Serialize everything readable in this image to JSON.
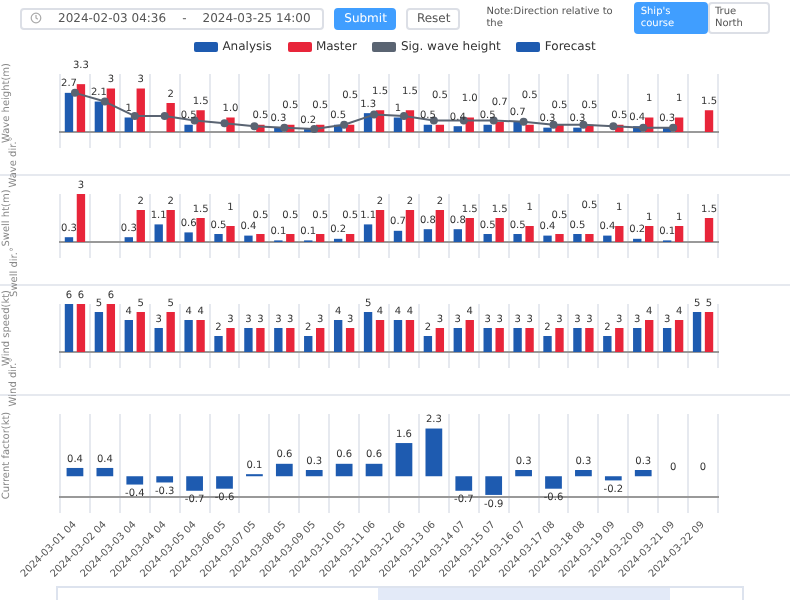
{
  "chart_data": [
    {
      "type": "other",
      "annotations": [
        "2024-02-03 04:36",
        "-",
        "2024-03-25 14:00",
        "Submit",
        "Reset",
        "Note:Direction relative to the",
        "Ship's course",
        "True North"
      ]
    },
    {
      "type": "bar",
      "ylabel": "Wave height(m)",
      "categories": [
        "2024-03-01 04",
        "2024-03-02 04",
        "2024-03-03 04",
        "2024-03-04 04",
        "2024-03-05 04",
        "2024-03-06 05",
        "2024-03-07 05",
        "2024-03-08 05",
        "2024-03-09 05",
        "2024-03-10 05",
        "2024-03-11 06",
        "2024-03-12 06",
        "2024-03-13 06",
        "2024-03-14 07",
        "2024-03-15 07",
        "2024-03-16 07",
        "2024-03-17 08",
        "2024-03-18 08",
        "2024-03-19 09",
        "2024-03-20 09",
        "2024-03-21 09",
        "2024-03-22 09"
      ],
      "series": [
        {
          "name": "Analysis",
          "color": "#1e5bb0",
          "values": [
            2.7,
            2.1,
            1,
            null,
            0.5,
            null,
            null,
            0.3,
            0.2,
            0.5,
            1.3,
            1,
            0.5,
            0.4,
            0.5,
            0.7,
            0.3,
            0.3,
            null,
            0.4,
            0.3,
            null
          ],
          "value_labels": [
            "2.7",
            "2.1",
            "1",
            null,
            "0.5",
            null,
            null,
            "0.3",
            "0.2",
            "0.5",
            "1.3",
            "1",
            "0.5",
            "0.4",
            "0.5",
            "0.7",
            "0.3",
            "0.3",
            null,
            "0.4",
            "0.3",
            null
          ]
        },
        {
          "name": "Master",
          "color": "#e8253a",
          "values": [
            3.3,
            3,
            3,
            2,
            1.5,
            1.0,
            0.5,
            0.5,
            0.5,
            0.5,
            1.5,
            1.5,
            0.5,
            1.0,
            0.7,
            0.5,
            0.5,
            0.5,
            0.5,
            1,
            1,
            1.5
          ],
          "value_labels": [
            "3.3",
            "3",
            "3",
            "2",
            "1.5",
            "1.0",
            "0.5",
            "0.5",
            "0.5",
            "0.5",
            "1.5",
            "1.5",
            "0.5",
            "1.0",
            "0.7",
            "0.5",
            "0.5",
            "0.5",
            "0.5",
            "1",
            "1",
            "1.5"
          ]
        },
        {
          "name": "Sig. wave height",
          "type": "line",
          "color": "#5a6472",
          "values": [
            2.7,
            2.1,
            1.1,
            1.1,
            0.8,
            0.6,
            0.4,
            0.3,
            0.2,
            0.5,
            1.2,
            1.1,
            0.8,
            0.8,
            0.8,
            0.7,
            0.5,
            0.5,
            0.4,
            0.3,
            0.3,
            null
          ]
        }
      ],
      "marker": "circle",
      "grid": "x",
      "legend": "top",
      "tick_labels": false
    },
    {
      "type": "other",
      "ylabel": "Wave dir.°"
    },
    {
      "type": "bar",
      "ylabel": "Swell ht(m)",
      "categories": [
        "2024-03-01 04",
        "2024-03-02 04",
        "2024-03-03 04",
        "2024-03-04 04",
        "2024-03-05 04",
        "2024-03-06 05",
        "2024-03-07 05",
        "2024-03-08 05",
        "2024-03-09 05",
        "2024-03-10 05",
        "2024-03-11 06",
        "2024-03-12 06",
        "2024-03-13 06",
        "2024-03-14 07",
        "2024-03-15 07",
        "2024-03-16 07",
        "2024-03-17 08",
        "2024-03-18 08",
        "2024-03-19 09",
        "2024-03-20 09",
        "2024-03-21 09",
        "2024-03-22 09"
      ],
      "series": [
        {
          "color": "#1e5bb0",
          "values": [
            0.3,
            null,
            0.3,
            1.1,
            0.6,
            0.5,
            0.4,
            0.1,
            0.1,
            0.2,
            1.1,
            0.7,
            0.8,
            0.8,
            0.5,
            0.5,
            0.4,
            0.5,
            0.4,
            0.2,
            0.1,
            null
          ]
        },
        {
          "color": "#e8253a",
          "values": [
            3,
            null,
            2,
            2,
            1.5,
            1.0,
            0.5,
            0.5,
            0.5,
            0.5,
            2.0,
            2.0,
            2.0,
            1.5,
            1.5,
            1.0,
            0.5,
            0.5,
            1.0,
            1,
            1,
            1.5
          ]
        }
      ],
      "data_labels": true,
      "grid": "x",
      "tick_labels": false
    },
    {
      "type": "other",
      "ylabel": "Swell dir.°"
    },
    {
      "type": "bar",
      "ylabel": "Wind speed(kt)",
      "categories": [
        "2024-03-01 04",
        "2024-03-02 04",
        "2024-03-03 04",
        "2024-03-04 04",
        "2024-03-05 04",
        "2024-03-06 05",
        "2024-03-07 05",
        "2024-03-08 05",
        "2024-03-09 05",
        "2024-03-10 05",
        "2024-03-11 06",
        "2024-03-12 06",
        "2024-03-13 06",
        "2024-03-14 07",
        "2024-03-15 07",
        "2024-03-16 07",
        "2024-03-17 08",
        "2024-03-18 08",
        "2024-03-19 09",
        "2024-03-20 09",
        "2024-03-21 09",
        "2024-03-22 09"
      ],
      "series": [
        {
          "color": "#1e5bb0",
          "values": [
            6,
            5,
            4,
            3,
            4,
            2,
            3,
            3,
            2,
            4,
            5,
            4,
            2,
            3,
            3,
            3,
            2,
            3,
            2,
            3,
            3,
            5
          ]
        },
        {
          "color": "#e8253a",
          "values": [
            6,
            6,
            5,
            5,
            4,
            3,
            3,
            3,
            3,
            3,
            4,
            4,
            3,
            4,
            3,
            3,
            3,
            3,
            3,
            4,
            4,
            5
          ]
        }
      ],
      "data_labels": true,
      "grid": "x",
      "tick_labels": false
    },
    {
      "type": "other",
      "ylabel": "Wind dir.°"
    },
    {
      "type": "bar",
      "ylabel": "Current factor(kt)",
      "categories": [
        "2024-03-01 04",
        "2024-03-02 04",
        "2024-03-03 04",
        "2024-03-04 04",
        "2024-03-05 04",
        "2024-03-06 05",
        "2024-03-07 05",
        "2024-03-08 05",
        "2024-03-09 05",
        "2024-03-10 05",
        "2024-03-11 06",
        "2024-03-12 06",
        "2024-03-13 06",
        "2024-03-14 07",
        "2024-03-15 07",
        "2024-03-16 07",
        "2024-03-17 08",
        "2024-03-18 08",
        "2024-03-19 09",
        "2024-03-20 09",
        "2024-03-21 09",
        "2024-03-22 09"
      ],
      "series": [
        {
          "name": "Forecast",
          "color": "#1e5bb0",
          "values": [
            0.4,
            0.4,
            -0.4,
            -0.3,
            -0.7,
            -0.6,
            0.1,
            0.6,
            0.3,
            0.6,
            0.6,
            1.6,
            2.3,
            -0.7,
            -0.9,
            0.3,
            -0.6,
            0.3,
            -0.2,
            0.3,
            0,
            0
          ]
        }
      ],
      "data_labels": true,
      "grid": "x",
      "legend": "top",
      "tick_labels": "x"
    }
  ]
}
